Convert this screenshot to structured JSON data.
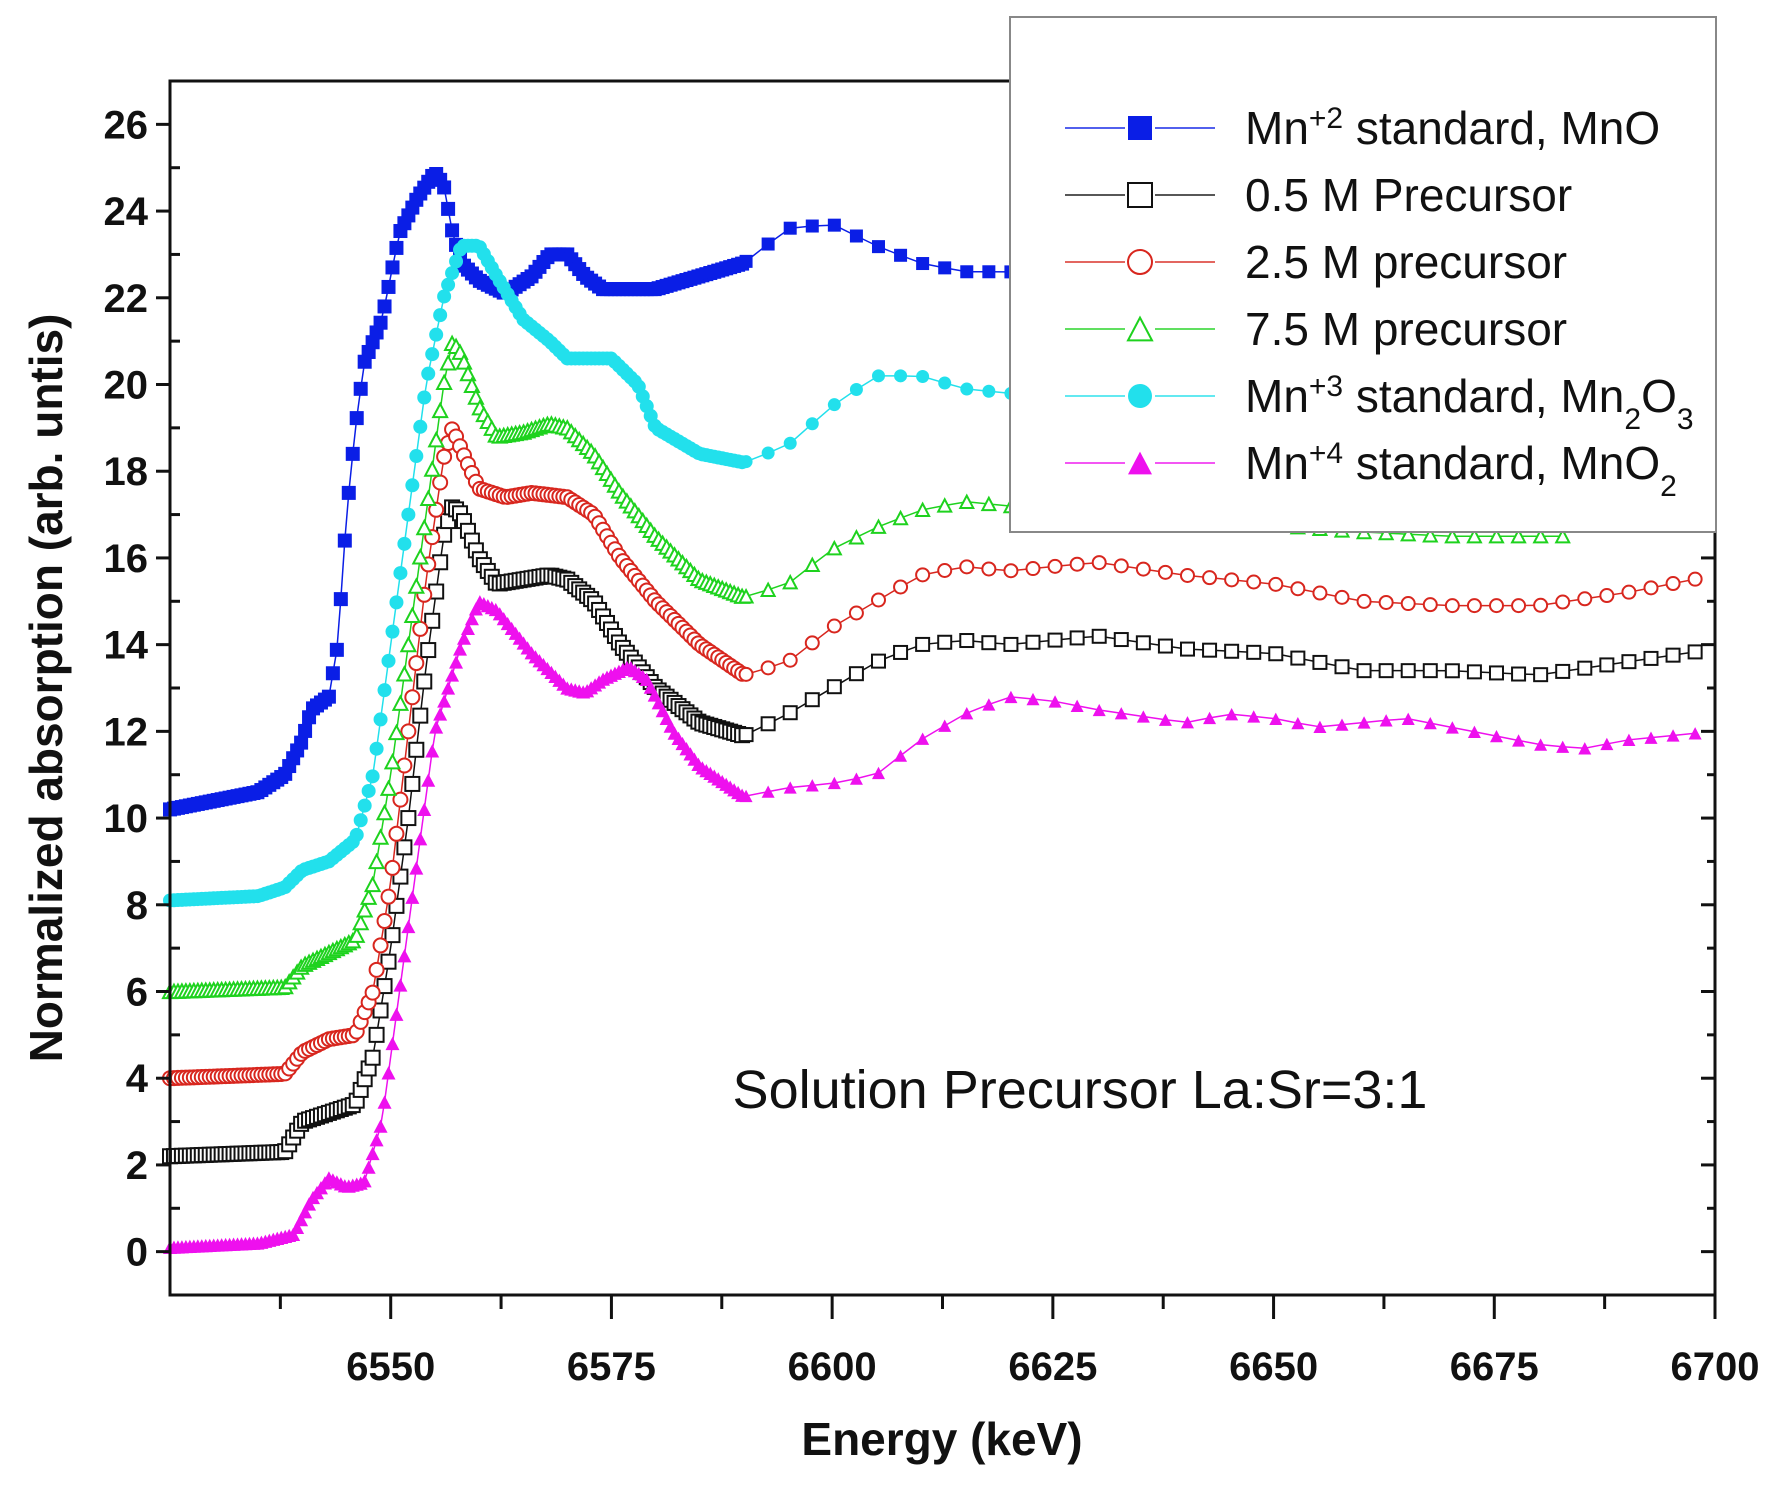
{
  "chart_data": {
    "type": "scatter",
    "title": "",
    "xlabel": "Energy (keV)",
    "ylabel": "Normalized absorption (arb. untis)",
    "xlim": [
      6525,
      6700
    ],
    "ylim": [
      -1,
      27
    ],
    "xticks": [
      6550,
      6575,
      6600,
      6625,
      6650,
      6675,
      6700
    ],
    "yticks": [
      0,
      2,
      4,
      6,
      8,
      10,
      12,
      14,
      16,
      18,
      20,
      22,
      24,
      26
    ],
    "grid": false,
    "legend_position": "top-right",
    "annotation": "Solution Precursor La:Sr=3:1",
    "series": [
      {
        "name": "Mn+2 standard, MnO",
        "label_parts": [
          {
            "t": "Mn"
          },
          {
            "t": "+2",
            "s": "sup"
          },
          {
            "t": " standard, MnO"
          }
        ],
        "color": "#0a1ee6",
        "marker": "square-filled",
        "x": [
          6525,
          6530,
          6535,
          6538,
          6540,
          6541,
          6543,
          6544,
          6545,
          6546,
          6547,
          6549,
          6551,
          6553,
          6555,
          6556,
          6557,
          6558,
          6560,
          6563,
          6566,
          6568,
          6570,
          6572,
          6574,
          6580,
          6585,
          6590,
          6595,
          6600,
          6605,
          6610,
          6615,
          6620,
          6630
        ],
        "y": [
          10.2,
          10.4,
          10.6,
          11.0,
          11.8,
          12.5,
          12.8,
          14.0,
          17.0,
          19.0,
          20.5,
          21.5,
          23.5,
          24.3,
          24.9,
          24.6,
          23.5,
          22.8,
          22.4,
          22.1,
          22.5,
          23.0,
          23.0,
          22.5,
          22.2,
          22.2,
          22.5,
          22.8,
          23.6,
          23.7,
          23.2,
          22.8,
          22.6,
          22.6,
          22.5
        ]
      },
      {
        "name": "0.5 M Precursor",
        "label_parts": [
          {
            "t": "0.5 M Precursor"
          }
        ],
        "color": "#111111",
        "marker": "square-open",
        "x": [
          6525,
          6538,
          6540,
          6543,
          6546,
          6548,
          6550,
          6552,
          6554,
          6556,
          6557,
          6558,
          6560,
          6562,
          6565,
          6568,
          6570,
          6573,
          6576,
          6580,
          6585,
          6590,
          6595,
          6600,
          6605,
          6610,
          6615,
          6620,
          6630,
          6640,
          6650,
          6655,
          6660,
          6670,
          6680,
          6690,
          6700
        ],
        "y": [
          2.2,
          2.3,
          3.0,
          3.2,
          3.4,
          4.5,
          7.0,
          10.0,
          13.5,
          16.5,
          17.2,
          17.0,
          16.0,
          15.4,
          15.5,
          15.6,
          15.5,
          15.0,
          14.0,
          13.0,
          12.2,
          11.9,
          12.4,
          13.0,
          13.6,
          14.0,
          14.1,
          14.0,
          14.2,
          13.9,
          13.8,
          13.6,
          13.4,
          13.4,
          13.3,
          13.6,
          13.9
        ]
      },
      {
        "name": "2.5 M precursor",
        "label_parts": [
          {
            "t": "2.5 M precursor"
          }
        ],
        "color": "#d8261e",
        "marker": "circle-open",
        "x": [
          6525,
          6538,
          6540,
          6543,
          6546,
          6548,
          6550,
          6552,
          6554,
          6556,
          6557,
          6558,
          6560,
          6563,
          6566,
          6570,
          6573,
          6576,
          6580,
          6585,
          6590,
          6595,
          6600,
          6605,
          6610,
          6615,
          6620,
          6630,
          6640,
          6650,
          6655,
          6660,
          6670,
          6680,
          6690,
          6700
        ],
        "y": [
          4.0,
          4.1,
          4.6,
          4.9,
          5.0,
          6.0,
          8.5,
          12.0,
          15.5,
          18.3,
          19.0,
          18.5,
          17.6,
          17.4,
          17.5,
          17.4,
          17.0,
          16.0,
          15.0,
          14.0,
          13.3,
          13.6,
          14.4,
          15.0,
          15.6,
          15.8,
          15.7,
          15.9,
          15.6,
          15.4,
          15.2,
          15.0,
          14.9,
          14.9,
          15.2,
          15.6
        ]
      },
      {
        "name": "7.5 M precursor",
        "label_parts": [
          {
            "t": "7.5 M precursor"
          }
        ],
        "color": "#1ed21e",
        "marker": "triangle-open",
        "x": [
          6525,
          6538,
          6540,
          6543,
          6546,
          6548,
          6550,
          6552,
          6554,
          6556,
          6557,
          6558,
          6560,
          6562,
          6565,
          6568,
          6570,
          6573,
          6576,
          6580,
          6585,
          6590,
          6595,
          6600,
          6605,
          6610,
          6615,
          6620,
          6625,
          6640,
          6660,
          6670,
          6683
        ],
        "y": [
          6.0,
          6.1,
          6.6,
          6.9,
          7.2,
          8.5,
          11.0,
          14.0,
          17.0,
          20.0,
          21.0,
          20.7,
          19.5,
          18.8,
          18.9,
          19.1,
          19.0,
          18.4,
          17.5,
          16.5,
          15.5,
          15.1,
          15.4,
          16.2,
          16.7,
          17.1,
          17.3,
          17.2,
          17.1,
          16.9,
          16.6,
          16.5,
          16.5
        ]
      },
      {
        "name": "Mn+3 standard, Mn2O3",
        "label_parts": [
          {
            "t": "Mn"
          },
          {
            "t": "+3",
            "s": "sup"
          },
          {
            "t": " standard, Mn"
          },
          {
            "t": "2",
            "s": "sub"
          },
          {
            "t": "O"
          },
          {
            "t": "3",
            "s": "sub"
          }
        ],
        "color": "#22e0ec",
        "marker": "circle-filled",
        "x": [
          6525,
          6535,
          6538,
          6540,
          6543,
          6546,
          6548,
          6550,
          6552,
          6554,
          6556,
          6558,
          6560,
          6562,
          6565,
          6568,
          6570,
          6572,
          6575,
          6578,
          6580,
          6585,
          6590,
          6595,
          6600,
          6605,
          6610,
          6615,
          6620,
          6630
        ],
        "y": [
          8.1,
          8.2,
          8.4,
          8.8,
          9.0,
          9.5,
          11.0,
          14.0,
          17.0,
          20.0,
          22.0,
          23.2,
          23.2,
          22.5,
          21.5,
          21.0,
          20.6,
          20.6,
          20.6,
          20.0,
          19.0,
          18.4,
          18.2,
          18.6,
          19.5,
          20.2,
          20.2,
          19.9,
          19.8,
          19.6
        ]
      },
      {
        "name": "Mn+4 standard, MnO2",
        "label_parts": [
          {
            "t": "Mn"
          },
          {
            "t": "+4",
            "s": "sup"
          },
          {
            "t": " standard, MnO"
          },
          {
            "t": "2",
            "s": "sub"
          }
        ],
        "color": "#ee10ee",
        "marker": "triangle-filled",
        "x": [
          6525,
          6535,
          6539,
          6541,
          6543,
          6545,
          6547,
          6549,
          6551,
          6553,
          6555,
          6558,
          6560,
          6562,
          6564,
          6566,
          6568,
          6570,
          6572,
          6574,
          6577,
          6579,
          6582,
          6585,
          6590,
          6595,
          6600,
          6605,
          6610,
          6615,
          6620,
          6625,
          6630,
          6640,
          6645,
          6650,
          6655,
          6660,
          6665,
          6670,
          6675,
          6680,
          6685,
          6690,
          6700
        ],
        "y": [
          0.1,
          0.2,
          0.4,
          1.2,
          1.7,
          1.5,
          1.6,
          3.0,
          6.0,
          9.0,
          12.0,
          14.0,
          15.0,
          14.8,
          14.3,
          13.8,
          13.4,
          13.0,
          12.9,
          13.2,
          13.5,
          13.2,
          12.0,
          11.2,
          10.5,
          10.7,
          10.8,
          11.0,
          11.8,
          12.4,
          12.8,
          12.7,
          12.5,
          12.2,
          12.4,
          12.3,
          12.1,
          12.2,
          12.3,
          12.1,
          11.9,
          11.7,
          11.6,
          11.8,
          12.0
        ]
      }
    ]
  }
}
